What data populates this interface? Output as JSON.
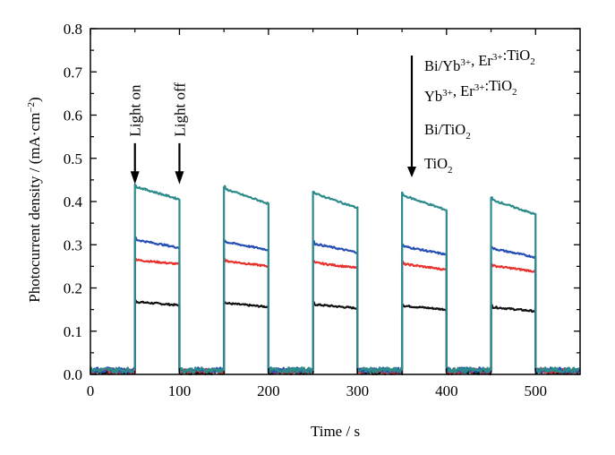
{
  "chart_data": {
    "type": "line",
    "xlabel": "Time / s",
    "ylabel_parts": {
      "main": "Photocurrent density / (mA·cm",
      "sup": "−2",
      "close": ")"
    },
    "xlim": [
      0,
      550
    ],
    "ylim": [
      0,
      0.8
    ],
    "xticks": [
      0,
      100,
      200,
      300,
      400,
      500
    ],
    "yticks": [
      0.0,
      0.1,
      0.2,
      0.3,
      0.4,
      0.5,
      0.6,
      0.7,
      0.8
    ],
    "xtick_labels": [
      "0",
      "100",
      "200",
      "300",
      "400",
      "500"
    ],
    "ytick_labels": [
      "0.0",
      "0.1",
      "0.2",
      "0.3",
      "0.4",
      "0.5",
      "0.6",
      "0.7",
      "0.8"
    ],
    "on_periods": [
      [
        50,
        100
      ],
      [
        150,
        200
      ],
      [
        250,
        300
      ],
      [
        350,
        400
      ],
      [
        450,
        500
      ]
    ],
    "series": [
      {
        "name": "Bi/Yb³⁺, Er³⁺:TiO₂",
        "color": "#2e8b8b",
        "baseline": 0.01,
        "starts": [
          0.435,
          0.43,
          0.42,
          0.415,
          0.405
        ],
        "ends": [
          0.405,
          0.395,
          0.385,
          0.38,
          0.37
        ]
      },
      {
        "name": "Yb³⁺, Er³⁺:TiO₂",
        "color": "#2850b4",
        "baseline": 0.01,
        "starts": [
          0.312,
          0.307,
          0.303,
          0.297,
          0.292
        ],
        "ends": [
          0.293,
          0.288,
          0.282,
          0.277,
          0.271
        ]
      },
      {
        "name": "Bi/TiO₂",
        "color": "#e8322d",
        "baseline": 0.008,
        "starts": [
          0.265,
          0.263,
          0.259,
          0.256,
          0.252
        ],
        "ends": [
          0.255,
          0.25,
          0.246,
          0.242,
          0.238
        ]
      },
      {
        "name": "TiO₂",
        "color": "#111111",
        "baseline": 0.006,
        "starts": [
          0.168,
          0.165,
          0.162,
          0.159,
          0.156
        ],
        "ends": [
          0.16,
          0.156,
          0.153,
          0.15,
          0.146
        ]
      }
    ],
    "legend": [
      {
        "parts": [
          {
            "t": "Bi/Yb"
          },
          {
            "t": "3+",
            "s": "sup"
          },
          {
            "t": ", Er"
          },
          {
            "t": "3+",
            "s": "sup"
          },
          {
            "t": ":TiO"
          },
          {
            "t": "2",
            "s": "sub"
          }
        ]
      },
      {
        "parts": [
          {
            "t": "Yb"
          },
          {
            "t": "3+",
            "s": "sup"
          },
          {
            "t": ", Er"
          },
          {
            "t": "3+",
            "s": "sup"
          },
          {
            "t": ":TiO"
          },
          {
            "t": "2",
            "s": "sub"
          }
        ]
      },
      {
        "parts": [
          {
            "t": "Bi/TiO"
          },
          {
            "t": "2",
            "s": "sub"
          }
        ]
      },
      {
        "parts": [
          {
            "t": "TiO"
          },
          {
            "t": "2",
            "s": "sub"
          }
        ]
      }
    ],
    "legend_arrow": "downward",
    "annotations": [
      {
        "text": "Light on",
        "x": 50
      },
      {
        "text": "Light off",
        "x": 100
      }
    ]
  }
}
